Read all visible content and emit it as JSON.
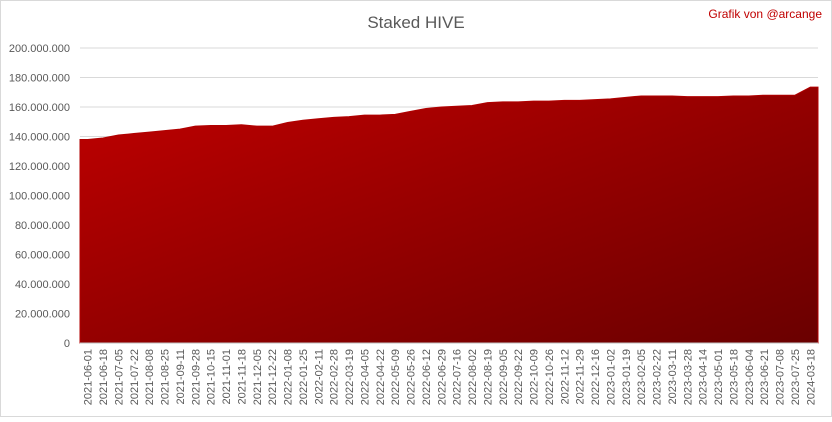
{
  "chart_data": {
    "type": "area",
    "title": "Staked HIVE",
    "annotation": "Grafik von @arcange",
    "categories": [
      "2021-06-01",
      "2021-06-18",
      "2021-07-05",
      "2021-07-22",
      "2021-08-08",
      "2021-08-25",
      "2021-09-11",
      "2021-09-28",
      "2021-10-15",
      "2021-11-01",
      "2021-11-18",
      "2021-12-05",
      "2021-12-22",
      "2022-01-08",
      "2022-01-25",
      "2022-02-11",
      "2022-02-28",
      "2022-03-19",
      "2022-04-05",
      "2022-04-22",
      "2022-05-09",
      "2022-05-26",
      "2022-06-12",
      "2022-06-29",
      "2022-07-16",
      "2022-08-02",
      "2022-08-19",
      "2022-09-05",
      "2022-09-22",
      "2022-10-09",
      "2022-10-26",
      "2022-11-12",
      "2022-11-29",
      "2022-12-16",
      "2023-01-02",
      "2023-01-19",
      "2023-02-05",
      "2023-02-22",
      "2023-03-11",
      "2023-03-28",
      "2023-04-14",
      "2023-05-01",
      "2023-05-18",
      "2023-06-04",
      "2023-06-21",
      "2023-07-08",
      "2023-07-25",
      "2024-03-18"
    ],
    "values": [
      138000000,
      139000000,
      141000000,
      142000000,
      143000000,
      144000000,
      145000000,
      147000000,
      147500000,
      147500000,
      148000000,
      147000000,
      147000000,
      149500000,
      151000000,
      152000000,
      153000000,
      153500000,
      154500000,
      154500000,
      155000000,
      157000000,
      159000000,
      160000000,
      160500000,
      161000000,
      163000000,
      163500000,
      163500000,
      164000000,
      164000000,
      164500000,
      164500000,
      165000000,
      165500000,
      166500000,
      167500000,
      167500000,
      167500000,
      167000000,
      167000000,
      167000000,
      167500000,
      167500000,
      168000000,
      168000000,
      168000000,
      173500000
    ],
    "color": "#b00000",
    "ylim": [
      0,
      200000000
    ],
    "yticks": [
      0,
      {
        "value": 20000000,
        "label": "20.000.000"
      },
      {
        "value": 40000000,
        "label": "40.000.000"
      },
      {
        "value": 60000000,
        "label": "60.000.000"
      },
      {
        "value": 80000000,
        "label": "80.000.000"
      },
      {
        "value": 100000000,
        "label": "100.000.000"
      },
      {
        "value": 120000000,
        "label": "120.000.000"
      },
      {
        "value": 140000000,
        "label": "140.000.000"
      },
      {
        "value": 160000000,
        "label": "160.000.000"
      },
      {
        "value": 180000000,
        "label": "180.000.000"
      },
      {
        "value": 200000000,
        "label": "200.000.000"
      }
    ],
    "grid": true
  }
}
